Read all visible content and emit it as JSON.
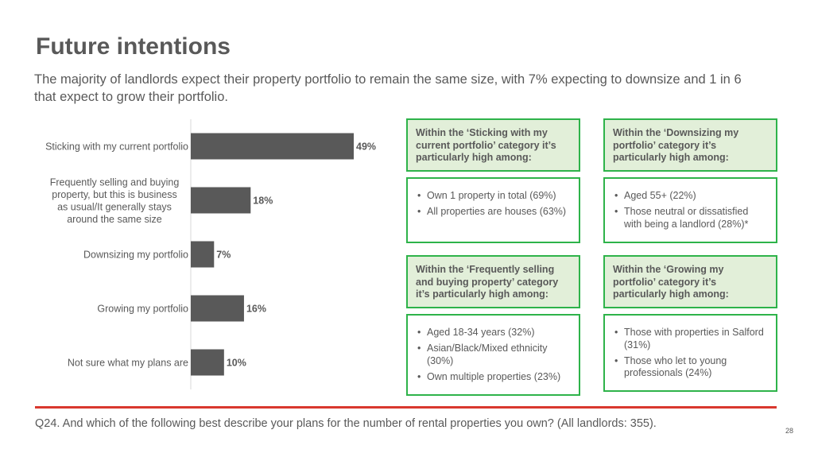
{
  "slide": {
    "title": "Future intentions",
    "subtitle": "The majority of landlords expect their property portfolio to remain the same size, with 7% expecting to downsize and 1 in 6 that expect to grow their portfolio.",
    "footnote": "Q24. And which of the following best describe your plans for the number of rental properties you own? (All landlords: 355).",
    "page_number": "28"
  },
  "colors": {
    "bar": "#595959",
    "box_border": "#2eb34a",
    "box_header_fill": "#e2efd9",
    "rule": "#d9382e",
    "text": "#595959"
  },
  "chart_data": {
    "type": "bar",
    "orientation": "horizontal",
    "categories": [
      "Sticking with my current portfolio",
      "Frequently selling and buying property, but this is business as usual/It generally stays around the same size",
      "Downsizing my portfolio",
      "Growing my portfolio",
      "Not sure what my plans are"
    ],
    "values": [
      49,
      18,
      7,
      16,
      10
    ],
    "value_labels": [
      "49%",
      "18%",
      "7%",
      "16%",
      "10%"
    ],
    "unit": "%",
    "xlim": [
      0,
      60
    ],
    "grid": false,
    "legend": "none",
    "title": "",
    "xlabel": "",
    "ylabel": ""
  },
  "callouts": [
    {
      "header": "Within the ‘Sticking with my current portfolio’ category it’s particularly high among:",
      "items": [
        "Own 1 property in total (69%)",
        "All properties are houses (63%)"
      ]
    },
    {
      "header": "Within the ‘Downsizing my portfolio’ category it’s particularly high among:",
      "items": [
        "Aged 55+ (22%)",
        "Those neutral or dissatisfied with being a landlord (28%)*"
      ]
    },
    {
      "header": "Within the ‘Frequently selling and buying property’ category it’s particularly high among:",
      "items": [
        "Aged 18-34 years (32%)",
        "Asian/Black/Mixed ethnicity (30%)",
        "Own multiple properties (23%)"
      ]
    },
    {
      "header": "Within the ‘Growing my portfolio’ category it’s particularly high among:",
      "items": [
        "Those with properties in Salford (31%)",
        "Those who let to young professionals (24%)"
      ]
    }
  ]
}
